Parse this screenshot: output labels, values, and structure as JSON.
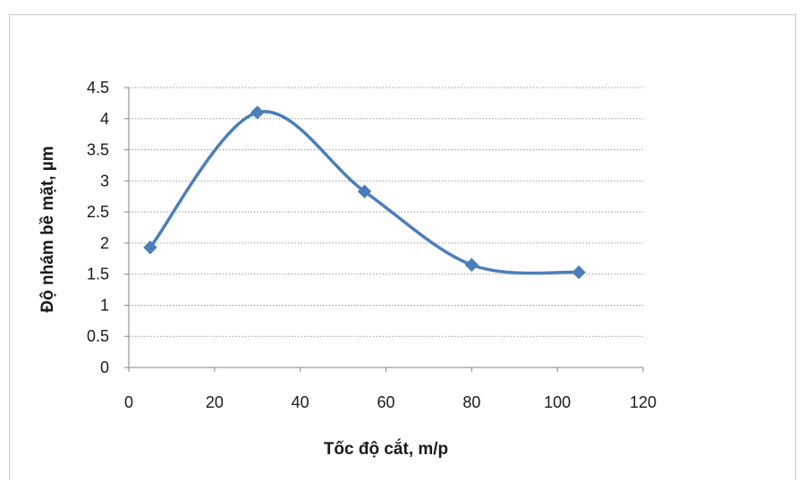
{
  "chart_data": {
    "type": "line",
    "smooth": true,
    "title": "",
    "xlabel": "Tốc độ cắt, m/p",
    "ylabel": "Độ nhám bề mặt, µm",
    "xlim": [
      0,
      120
    ],
    "ylim": [
      0,
      4.5
    ],
    "xticks": [
      0,
      20,
      40,
      60,
      80,
      100,
      120
    ],
    "yticks": [
      0,
      0.5,
      1,
      1.5,
      2,
      2.5,
      3,
      3.5,
      4,
      4.5
    ],
    "xtick_labels": [
      "0",
      "20",
      "40",
      "60",
      "80",
      "100",
      "120"
    ],
    "ytick_labels": [
      "0",
      "0.5",
      "1",
      "1.5",
      "2",
      "2.5",
      "3",
      "3.5",
      "4",
      "4.5"
    ],
    "grid": "horizontal dotted",
    "legend": "none",
    "marker": "diamond",
    "series": [
      {
        "x": [
          5,
          30,
          55,
          80,
          105
        ],
        "values": [
          1.93,
          4.1,
          2.83,
          1.65,
          1.53
        ],
        "color": "#4a7ebb"
      }
    ]
  }
}
